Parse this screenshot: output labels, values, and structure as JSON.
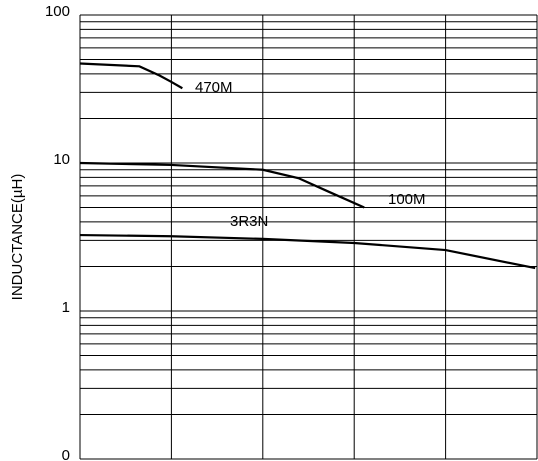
{
  "chart_data": {
    "type": "line",
    "y_label": "INDUCTANCE(µH)",
    "log_y": true,
    "minor_grid": true,
    "ylim": [
      0.1,
      100
    ],
    "yticks": [
      {
        "value": 0.1,
        "label": "0"
      },
      1,
      10,
      100
    ],
    "xlim": [
      0,
      5
    ],
    "xticks": [
      0,
      1,
      2,
      3,
      4,
      5
    ],
    "color": "#000000",
    "series": [
      {
        "name": "470M",
        "x": [
          0,
          0.65,
          0.87,
          1.0,
          1.12
        ],
        "values": [
          47,
          45,
          39,
          35.3,
          32
        ]
      },
      {
        "name": "100M",
        "x": [
          0,
          1.0,
          2.0,
          2.39,
          2.72,
          3.11
        ],
        "values": [
          10,
          9.7,
          9.0,
          7.9,
          6.4,
          5.0
        ]
      },
      {
        "name": "3R3N",
        "x": [
          0,
          1.0,
          2.0,
          3.0,
          4.0,
          4.98
        ],
        "values": [
          3.26,
          3.2,
          3.07,
          2.88,
          2.58,
          1.95
        ]
      }
    ]
  }
}
